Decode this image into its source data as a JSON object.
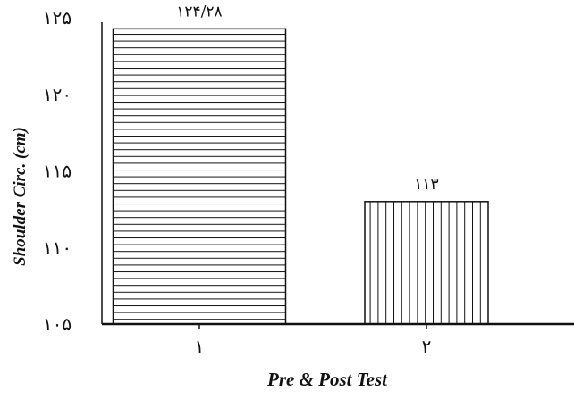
{
  "chart_data": {
    "type": "bar",
    "categories": [
      "۱",
      "۲"
    ],
    "values": [
      124.28,
      113
    ],
    "value_labels": [
      "۱۲۴/۲۸",
      "۱۱۳"
    ],
    "ylabel": "Shoulder Circ. (cm)",
    "xlabel": "Pre & Post Test",
    "ylim": [
      105,
      125
    ],
    "yticks": [
      {
        "value": 105,
        "label": "۱۰۵"
      },
      {
        "value": 110,
        "label": "۱۱۰"
      },
      {
        "value": 115,
        "label": "۱۱۵"
      },
      {
        "value": 120,
        "label": "۱۲۰"
      },
      {
        "value": 125,
        "label": "۱۲۵"
      }
    ],
    "patterns": [
      "horizontal-hatch",
      "vertical-hatch"
    ],
    "grid": false,
    "legend": "none"
  }
}
